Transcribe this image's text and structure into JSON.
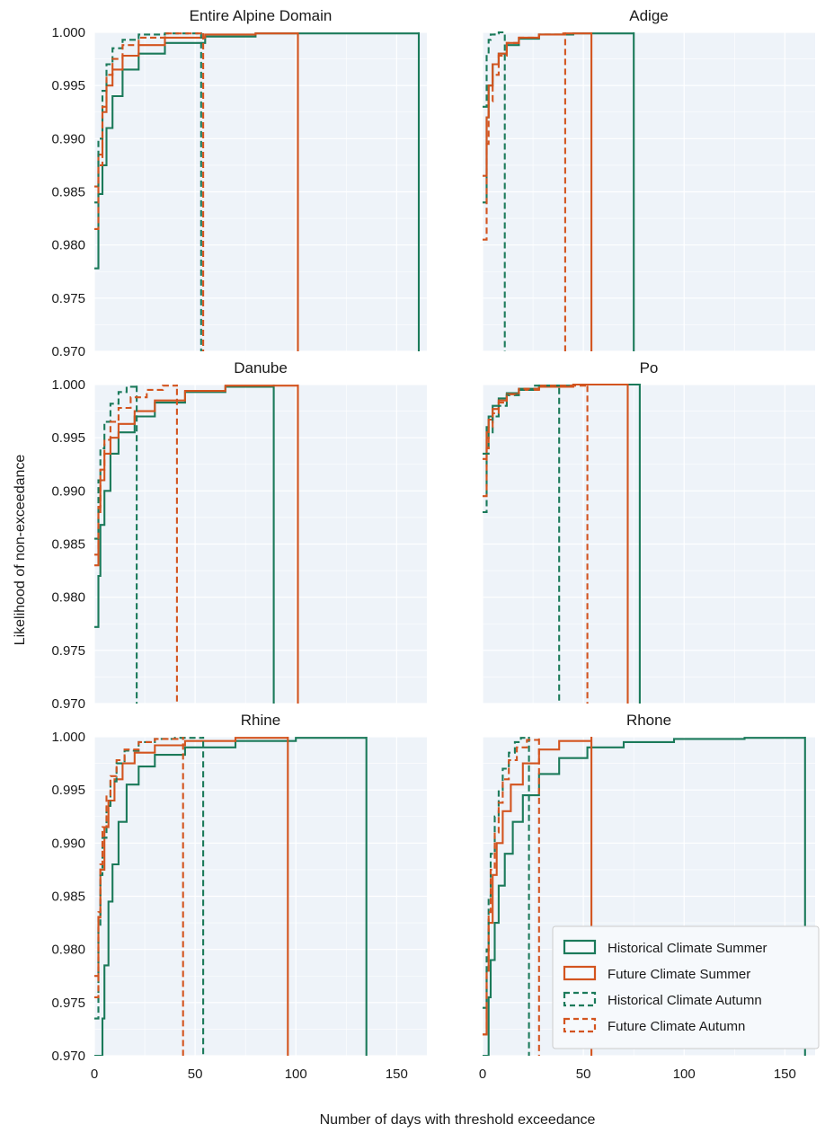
{
  "figure": {
    "ylabel": "Likelihood of non-exceedance",
    "xlabel": "Number of days with threshold exceedance"
  },
  "colors": {
    "historical": "#1b7a5a",
    "future": "#d3541f",
    "panel_bg": "#eef3f9",
    "grid": "#ffffff"
  },
  "legend": {
    "entries": [
      {
        "label": "Historical Climate Summer",
        "color": "#1b7a5a",
        "style": "solid"
      },
      {
        "label": "Future Climate Summer",
        "color": "#d3541f",
        "style": "solid"
      },
      {
        "label": "Historical Climate Autumn",
        "color": "#1b7a5a",
        "style": "dashed"
      },
      {
        "label": "Future Climate Autumn",
        "color": "#d3541f",
        "style": "dashed"
      }
    ],
    "placement": "lower-right of Rhone panel"
  },
  "chart_data": [
    {
      "type": "line",
      "title": "Entire Alpine Domain",
      "xlim": [
        0,
        165
      ],
      "ylim": [
        0.97,
        1.0
      ],
      "xticks": [
        "0",
        "50",
        "100",
        "150"
      ],
      "yticks": [
        "0.970",
        "0.975",
        "0.980",
        "0.985",
        "0.990",
        "0.995",
        "1.000"
      ],
      "series": [
        {
          "name": "Historical Climate Summer",
          "x": [
            1,
            2,
            4,
            6,
            9,
            14,
            22,
            35,
            55,
            80,
            161
          ],
          "y": [
            0.9778,
            0.9848,
            0.9875,
            0.991,
            0.994,
            0.9965,
            0.998,
            0.999,
            0.9996,
            0.9999,
            1.0
          ],
          "end": 161
        },
        {
          "name": "Future Climate Summer",
          "x": [
            1,
            2,
            4,
            6,
            9,
            14,
            22,
            35,
            55,
            80,
            101
          ],
          "y": [
            0.9855,
            0.9885,
            0.9925,
            0.995,
            0.9965,
            0.9978,
            0.9988,
            0.9995,
            0.9998,
            0.9999,
            1.0
          ],
          "end": 101
        },
        {
          "name": "Historical Climate Autumn",
          "x": [
            1,
            2,
            4,
            6,
            9,
            14,
            22,
            35,
            53
          ],
          "y": [
            0.984,
            0.99,
            0.9945,
            0.997,
            0.9985,
            0.9993,
            0.9998,
            0.9999,
            1.0
          ],
          "end": 53
        },
        {
          "name": "Future Climate Autumn",
          "x": [
            1,
            2,
            4,
            6,
            9,
            14,
            22,
            35,
            54
          ],
          "y": [
            0.9815,
            0.9875,
            0.993,
            0.996,
            0.9975,
            0.9988,
            0.9995,
            0.9999,
            1.0
          ],
          "end": 54
        }
      ]
    },
    {
      "type": "line",
      "title": "Adige",
      "xlim": [
        0,
        165
      ],
      "ylim": [
        0.97,
        1.0
      ],
      "xticks": [
        "0",
        "50",
        "100",
        "150"
      ],
      "yticks": [
        "0.970",
        "0.975",
        "0.980",
        "0.985",
        "0.990",
        "0.995",
        "1.000"
      ],
      "series": [
        {
          "name": "Historical Climate Summer",
          "x": [
            1,
            2,
            3,
            5,
            8,
            12,
            18,
            28,
            45,
            75
          ],
          "y": [
            0.984,
            0.992,
            0.995,
            0.997,
            0.998,
            0.9988,
            0.9994,
            0.9998,
            0.9999,
            1.0
          ],
          "end": 75
        },
        {
          "name": "Future Climate Summer",
          "x": [
            1,
            2,
            3,
            5,
            8,
            12,
            18,
            28,
            40,
            54
          ],
          "y": [
            0.9865,
            0.992,
            0.995,
            0.997,
            0.998,
            0.999,
            0.9995,
            0.9998,
            0.9999,
            1.0
          ],
          "end": 54
        },
        {
          "name": "Historical Climate Autumn",
          "x": [
            1,
            2,
            3,
            4,
            6,
            8,
            11
          ],
          "y": [
            0.993,
            0.998,
            0.9993,
            0.9998,
            0.9999,
            1.0,
            1.0
          ],
          "end": 11
        },
        {
          "name": "Future Climate Autumn",
          "x": [
            1,
            2,
            3,
            5,
            8,
            12,
            18,
            28,
            41
          ],
          "y": [
            0.9805,
            0.9895,
            0.9935,
            0.996,
            0.9978,
            0.999,
            0.9995,
            0.9998,
            1.0
          ],
          "end": 41
        }
      ]
    },
    {
      "type": "line",
      "title": "Danube",
      "xlim": [
        0,
        165
      ],
      "ylim": [
        0.97,
        1.0
      ],
      "xticks": [
        "0",
        "50",
        "100",
        "150"
      ],
      "yticks": [
        "0.970",
        "0.975",
        "0.980",
        "0.985",
        "0.990",
        "0.995",
        "1.000"
      ],
      "series": [
        {
          "name": "Historical Climate Summer",
          "x": [
            1,
            2,
            3,
            5,
            8,
            12,
            20,
            30,
            45,
            65,
            89
          ],
          "y": [
            0.9772,
            0.982,
            0.9868,
            0.99,
            0.9935,
            0.9955,
            0.997,
            0.9983,
            0.9993,
            0.9998,
            1.0
          ],
          "end": 89
        },
        {
          "name": "Future Climate Summer",
          "x": [
            1,
            2,
            3,
            5,
            8,
            12,
            20,
            30,
            45,
            65,
            101
          ],
          "y": [
            0.983,
            0.988,
            0.991,
            0.9935,
            0.995,
            0.9963,
            0.9975,
            0.9985,
            0.9994,
            0.9999,
            1.0
          ],
          "end": 101
        },
        {
          "name": "Historical Climate Autumn",
          "x": [
            1,
            2,
            3,
            5,
            8,
            12,
            16,
            21
          ],
          "y": [
            0.9855,
            0.991,
            0.994,
            0.9965,
            0.9982,
            0.9993,
            0.9998,
            1.0
          ],
          "end": 21
        },
        {
          "name": "Future Climate Autumn",
          "x": [
            1,
            2,
            3,
            5,
            8,
            12,
            18,
            26,
            34,
            41
          ],
          "y": [
            0.984,
            0.9885,
            0.992,
            0.9948,
            0.9965,
            0.9978,
            0.9988,
            0.9995,
            0.9999,
            1.0
          ],
          "end": 41
        }
      ]
    },
    {
      "type": "line",
      "title": "Po",
      "xlim": [
        0,
        165
      ],
      "ylim": [
        0.97,
        1.0
      ],
      "xticks": [
        "0",
        "50",
        "100",
        "150"
      ],
      "yticks": [
        "0.970",
        "0.975",
        "0.980",
        "0.985",
        "0.990",
        "0.995",
        "1.000"
      ],
      "series": [
        {
          "name": "Historical Climate Summer",
          "x": [
            1,
            2,
            3,
            5,
            8,
            12,
            18,
            28,
            45,
            78
          ],
          "y": [
            0.9935,
            0.996,
            0.997,
            0.998,
            0.9987,
            0.9992,
            0.9996,
            0.9999,
            1.0,
            1.0
          ],
          "end": 78
        },
        {
          "name": "Future Climate Summer",
          "x": [
            1,
            2,
            3,
            5,
            8,
            12,
            18,
            28,
            45,
            72
          ],
          "y": [
            0.993,
            0.9955,
            0.9967,
            0.9977,
            0.9985,
            0.9991,
            0.9995,
            0.9998,
            1.0,
            1.0
          ],
          "end": 72
        },
        {
          "name": "Historical Climate Autumn",
          "x": [
            1,
            2,
            3,
            5,
            8,
            12,
            18,
            25,
            38
          ],
          "y": [
            0.988,
            0.9935,
            0.9955,
            0.997,
            0.998,
            0.999,
            0.9995,
            0.9999,
            1.0
          ],
          "end": 38
        },
        {
          "name": "Future Climate Autumn",
          "x": [
            1,
            2,
            3,
            5,
            8,
            12,
            18,
            28,
            52
          ],
          "y": [
            0.9895,
            0.994,
            0.996,
            0.9973,
            0.9983,
            0.9991,
            0.9996,
            0.9999,
            1.0
          ],
          "end": 52
        }
      ]
    },
    {
      "type": "line",
      "title": "Rhine",
      "xlim": [
        0,
        165
      ],
      "ylim": [
        0.97,
        1.0
      ],
      "xticks": [
        "0",
        "50",
        "100",
        "150"
      ],
      "yticks": [
        "0.970",
        "0.975",
        "0.980",
        "0.985",
        "0.990",
        "0.995",
        "1.000"
      ],
      "series": [
        {
          "name": "Historical Climate Summer",
          "x": [
            3,
            4,
            5,
            7,
            9,
            12,
            16,
            22,
            30,
            45,
            70,
            100,
            135
          ],
          "y": [
            0.97,
            0.9735,
            0.9785,
            0.9845,
            0.988,
            0.992,
            0.9955,
            0.9972,
            0.9983,
            0.999,
            0.9996,
            0.9999,
            1.0
          ],
          "end": 135
        },
        {
          "name": "Future Climate Summer",
          "x": [
            1,
            2,
            3,
            5,
            7,
            10,
            14,
            20,
            30,
            45,
            70,
            96
          ],
          "y": [
            0.9775,
            0.983,
            0.9875,
            0.9915,
            0.994,
            0.996,
            0.9975,
            0.9985,
            0.9992,
            0.9996,
            0.9999,
            1.0
          ],
          "end": 96
        },
        {
          "name": "Historical Climate Autumn",
          "x": [
            1,
            2,
            3,
            4,
            6,
            8,
            11,
            15,
            22,
            30,
            40,
            54
          ],
          "y": [
            0.9735,
            0.982,
            0.987,
            0.9905,
            0.9935,
            0.9958,
            0.9975,
            0.9987,
            0.9995,
            0.9998,
            0.9999,
            1.0
          ],
          "end": 54
        },
        {
          "name": "Future Climate Autumn",
          "x": [
            1,
            2,
            3,
            4,
            6,
            8,
            11,
            15,
            22,
            30,
            44
          ],
          "y": [
            0.9755,
            0.9835,
            0.988,
            0.9915,
            0.9945,
            0.9963,
            0.9978,
            0.9988,
            0.9995,
            0.9998,
            1.0
          ],
          "end": 44
        }
      ]
    },
    {
      "type": "line",
      "title": "Rhone",
      "xlim": [
        0,
        165
      ],
      "ylim": [
        0.97,
        1.0
      ],
      "xticks": [
        "0",
        "50",
        "100",
        "150"
      ],
      "yticks": [
        "0.970",
        "0.975",
        "0.980",
        "0.985",
        "0.990",
        "0.995",
        "1.000"
      ],
      "series": [
        {
          "name": "Historical Climate Summer",
          "x": [
            2,
            3,
            4,
            6,
            8,
            11,
            15,
            20,
            28,
            38,
            52,
            70,
            95,
            130,
            160
          ],
          "y": [
            0.97,
            0.9755,
            0.979,
            0.9825,
            0.986,
            0.989,
            0.992,
            0.9945,
            0.9965,
            0.998,
            0.999,
            0.9995,
            0.9998,
            0.9999,
            1.0
          ],
          "end": 160
        },
        {
          "name": "Future Climate Summer",
          "x": [
            1,
            2,
            3,
            5,
            7,
            10,
            14,
            20,
            28,
            38,
            54
          ],
          "y": [
            0.972,
            0.978,
            0.9825,
            0.987,
            0.99,
            0.993,
            0.9955,
            0.9975,
            0.9988,
            0.9996,
            1.0
          ],
          "end": 54
        },
        {
          "name": "Historical Climate Autumn",
          "x": [
            1,
            2,
            3,
            4,
            6,
            8,
            10,
            13,
            16,
            19,
            23
          ],
          "y": [
            0.9745,
            0.98,
            0.985,
            0.989,
            0.9925,
            0.995,
            0.997,
            0.9985,
            0.9995,
            0.9999,
            1.0
          ],
          "end": 23
        },
        {
          "name": "Future Climate Autumn",
          "x": [
            1,
            2,
            3,
            4,
            6,
            8,
            10,
            13,
            17,
            22,
            28
          ],
          "y": [
            0.972,
            0.978,
            0.9835,
            0.9875,
            0.991,
            0.9938,
            0.996,
            0.9978,
            0.999,
            0.9997,
            1.0
          ],
          "end": 28
        }
      ]
    }
  ]
}
